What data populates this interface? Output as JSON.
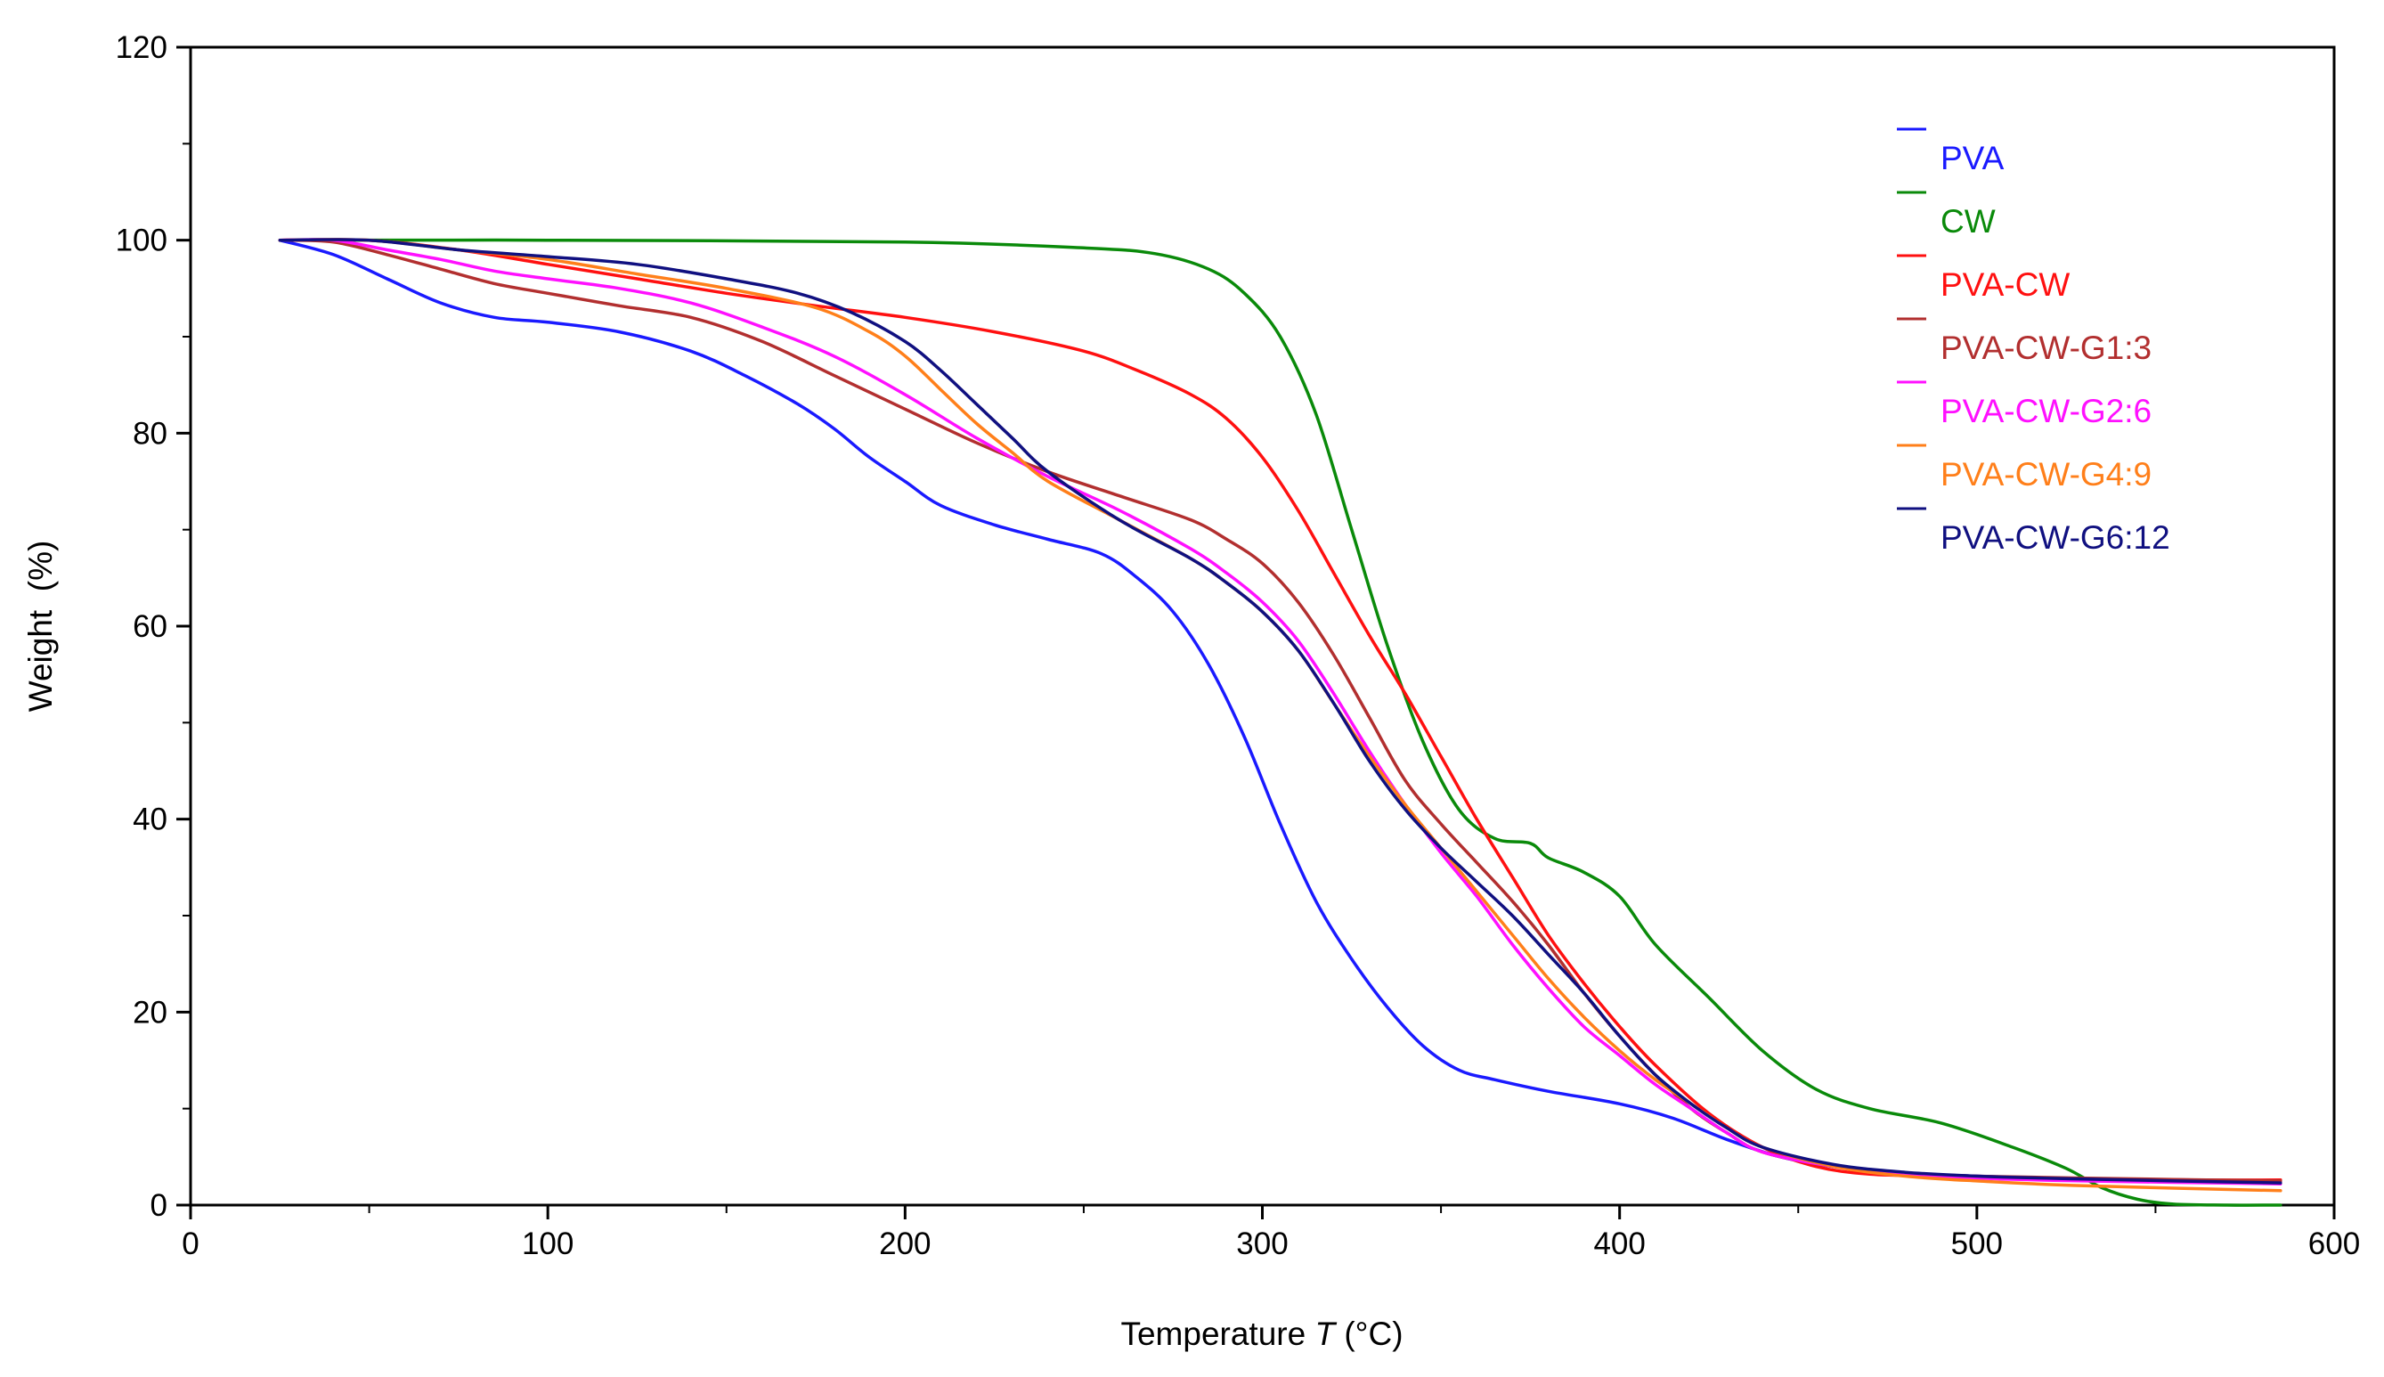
{
  "chart_data": {
    "type": "line",
    "title": "",
    "xlabel": "Temperature",
    "xlabel_symbol": "T",
    "xlabel_unit": "(°C)",
    "ylabel": "Weight  (%)",
    "xlim": [
      0,
      600
    ],
    "ylim": [
      0,
      120
    ],
    "xticks": [
      0,
      100,
      200,
      300,
      400,
      500,
      600
    ],
    "yticks": [
      0,
      20,
      40,
      60,
      80,
      100,
      120
    ],
    "grid": false,
    "legend_position": "top-right",
    "series": [
      {
        "name": "PVA",
        "color": "#1a1aff",
        "x": [
          25,
          40,
          55,
          70,
          85,
          100,
          120,
          140,
          155,
          170,
          180,
          190,
          200,
          210,
          225,
          240,
          255,
          265,
          275,
          285,
          295,
          305,
          315,
          325,
          335,
          345,
          355,
          365,
          380,
          400,
          415,
          430,
          445,
          460,
          480,
          500,
          520,
          540,
          560,
          585
        ],
        "y": [
          100,
          98.5,
          96,
          93.5,
          92,
          91.5,
          90.5,
          88.5,
          86,
          83,
          80.5,
          77.5,
          75,
          72.5,
          70.5,
          69,
          67.5,
          65,
          61.5,
          56,
          48.5,
          39.5,
          31.5,
          25.5,
          20.5,
          16.5,
          14,
          13,
          11.8,
          10.5,
          9,
          6.8,
          5,
          4,
          3.3,
          3,
          2.8,
          2.7,
          2.6,
          2.5
        ]
      },
      {
        "name": "CW",
        "color": "#0a8a0a",
        "x": [
          25,
          100,
          200,
          250,
          270,
          285,
          295,
          305,
          315,
          325,
          335,
          345,
          355,
          365,
          375,
          380,
          390,
          400,
          410,
          425,
          440,
          455,
          470,
          490,
          510,
          525,
          535,
          545,
          555,
          570,
          585
        ],
        "y": [
          100,
          100,
          99.8,
          99.2,
          98.6,
          97,
          94.5,
          90,
          82,
          70,
          58,
          48,
          41,
          38,
          37.5,
          36,
          34.5,
          32,
          27,
          21.5,
          16,
          12,
          10,
          8.5,
          6,
          3.8,
          1.8,
          0.6,
          0.1,
          0,
          0
        ]
      },
      {
        "name": "PVA-CW",
        "color": "#ff1010",
        "x": [
          25,
          50,
          75,
          100,
          125,
          150,
          175,
          200,
          225,
          250,
          265,
          280,
          290,
          300,
          310,
          320,
          330,
          340,
          350,
          360,
          370,
          380,
          390,
          400,
          410,
          425,
          440,
          455,
          470,
          490,
          510,
          530,
          560,
          585
        ],
        "y": [
          100,
          100,
          99,
          97.5,
          96,
          94.5,
          93.2,
          92,
          90.5,
          88.5,
          86.5,
          84,
          81.5,
          77.5,
          72,
          65.5,
          59,
          53,
          46.5,
          40,
          34,
          28,
          23,
          18.5,
          14.5,
          9.5,
          6,
          4,
          3.2,
          3,
          2.8,
          2.7,
          2.6,
          2.6
        ]
      },
      {
        "name": "PVA-CW-G1:3",
        "color": "#b22f2f",
        "x": [
          25,
          40,
          55,
          70,
          85,
          100,
          120,
          140,
          160,
          180,
          200,
          220,
          240,
          260,
          280,
          290,
          300,
          310,
          320,
          330,
          340,
          350,
          360,
          370,
          380,
          390,
          400,
          410,
          420,
          430,
          440,
          460,
          480,
          500,
          530,
          585
        ],
        "y": [
          100,
          99.8,
          98.5,
          97,
          95.5,
          94.5,
          93.2,
          92,
          89.5,
          86,
          82.5,
          79,
          76,
          73.5,
          71,
          69,
          66.5,
          62.5,
          57,
          50.5,
          44,
          39.5,
          35.5,
          31.5,
          27,
          22,
          17.5,
          13.5,
          10,
          7.5,
          5.5,
          4,
          3.3,
          3,
          2.8,
          2.5
        ]
      },
      {
        "name": "PVA-CW-G2:6",
        "color": "#ff10ff",
        "x": [
          25,
          40,
          55,
          70,
          85,
          100,
          120,
          140,
          160,
          180,
          200,
          220,
          240,
          260,
          280,
          290,
          300,
          310,
          320,
          330,
          340,
          350,
          360,
          370,
          380,
          390,
          400,
          410,
          420,
          430,
          440,
          460,
          480,
          500,
          530,
          585
        ],
        "y": [
          100,
          100,
          99,
          98,
          96.8,
          96,
          95,
          93.5,
          91,
          88,
          84,
          79.5,
          75.5,
          72,
          68,
          65.5,
          62.5,
          58.5,
          53,
          47,
          41.5,
          36.5,
          32,
          27,
          22.5,
          18.5,
          15.5,
          12.5,
          10,
          7.5,
          5.5,
          4,
          3.2,
          2.8,
          2.5,
          2.2
        ]
      },
      {
        "name": "PVA-CW-G4:9",
        "color": "#ff7f1a",
        "x": [
          25,
          50,
          75,
          100,
          125,
          150,
          175,
          190,
          200,
          210,
          220,
          230,
          240,
          260,
          280,
          290,
          300,
          310,
          320,
          330,
          340,
          350,
          360,
          370,
          380,
          390,
          400,
          410,
          420,
          430,
          440,
          460,
          480,
          500,
          530,
          585
        ],
        "y": [
          100,
          100,
          99,
          98,
          96.5,
          95,
          93,
          90.5,
          88,
          84.5,
          81,
          78,
          75,
          71,
          67,
          64.5,
          61.5,
          57.5,
          52,
          46.5,
          41.5,
          37,
          32.5,
          28,
          23.5,
          19.5,
          16,
          13,
          10.5,
          8,
          6,
          4,
          3,
          2.5,
          2,
          1.5
        ]
      },
      {
        "name": "PVA-CW-G6:12",
        "color": "#101080",
        "x": [
          25,
          50,
          75,
          100,
          125,
          150,
          170,
          185,
          200,
          210,
          220,
          230,
          240,
          260,
          280,
          290,
          300,
          310,
          320,
          330,
          340,
          350,
          360,
          370,
          380,
          390,
          400,
          410,
          420,
          430,
          440,
          460,
          480,
          500,
          530,
          585
        ],
        "y": [
          100,
          100,
          99,
          98.3,
          97.5,
          96,
          94.5,
          92.5,
          89.5,
          86.5,
          83,
          79.5,
          76,
          71,
          67,
          64.5,
          61.5,
          57.5,
          52,
          46,
          41,
          37,
          33.5,
          30,
          26,
          22,
          17.5,
          13.5,
          10.5,
          8,
          6,
          4.2,
          3.4,
          3,
          2.7,
          2.3
        ]
      }
    ]
  }
}
